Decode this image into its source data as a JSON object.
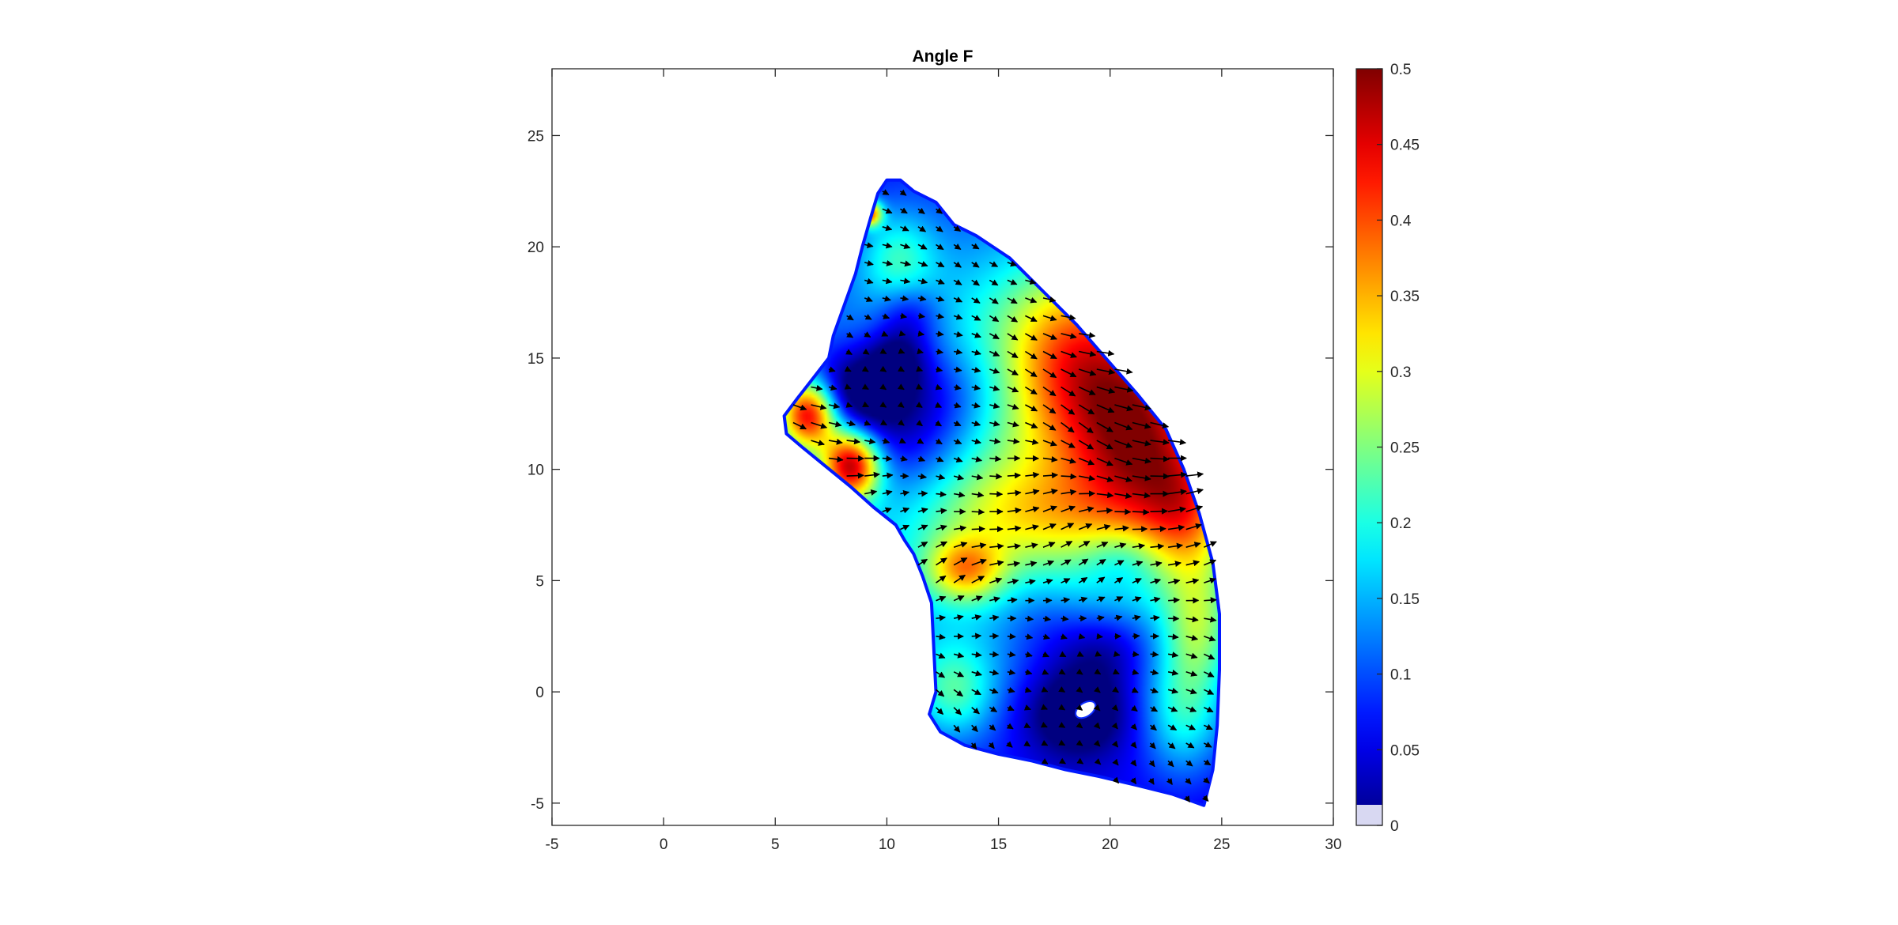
{
  "chart_data": {
    "type": "heatmap",
    "title": "Angle F",
    "xlabel": "",
    "ylabel": "",
    "xlim": [
      -5,
      30
    ],
    "ylim": [
      -6,
      28
    ],
    "x_ticks": [
      "-5",
      "0",
      "5",
      "10",
      "15",
      "20",
      "25",
      "30"
    ],
    "y_ticks": [
      "-5",
      "0",
      "5",
      "10",
      "15",
      "20",
      "25"
    ],
    "grid": false,
    "colormap": "jet",
    "colorbar": {
      "clim": [
        0,
        0.5
      ],
      "ticks": [
        "0",
        "0.05",
        "0.1",
        "0.15",
        "0.2",
        "0.25",
        "0.3",
        "0.35",
        "0.4",
        "0.45",
        "0.5"
      ]
    },
    "region_outline": [
      [
        10,
        23
      ],
      [
        10.6,
        23
      ],
      [
        11.2,
        22.5
      ],
      [
        12.2,
        22
      ],
      [
        13,
        21
      ],
      [
        14,
        20.5
      ],
      [
        15.5,
        19.5
      ],
      [
        17,
        18
      ],
      [
        18.5,
        16.5
      ],
      [
        19.8,
        15
      ],
      [
        21.2,
        13.4
      ],
      [
        22.5,
        11.8
      ],
      [
        23.3,
        10
      ],
      [
        24,
        8
      ],
      [
        24.6,
        5.8
      ],
      [
        24.9,
        3.5
      ],
      [
        24.9,
        1
      ],
      [
        24.8,
        -1.5
      ],
      [
        24.6,
        -3.5
      ],
      [
        24.2,
        -5.1
      ],
      [
        22.8,
        -4.6
      ],
      [
        21.2,
        -4.2
      ],
      [
        19.5,
        -3.8
      ],
      [
        18,
        -3.5
      ],
      [
        16.5,
        -3.1
      ],
      [
        15,
        -2.8
      ],
      [
        13.5,
        -2.4
      ],
      [
        12.4,
        -1.8
      ],
      [
        11.9,
        -1
      ],
      [
        12.2,
        0
      ],
      [
        12.1,
        2
      ],
      [
        12,
        4
      ],
      [
        11.6,
        5.2
      ],
      [
        11.2,
        6.2
      ],
      [
        10.8,
        6.8
      ],
      [
        10.4,
        7.5
      ],
      [
        9.4,
        8.3
      ],
      [
        8.4,
        9.2
      ],
      [
        7.3,
        10.1
      ],
      [
        6.2,
        11
      ],
      [
        5.5,
        11.6
      ],
      [
        5.4,
        12.4
      ],
      [
        6,
        13.2
      ],
      [
        6.7,
        14.1
      ],
      [
        7.4,
        15
      ],
      [
        7.6,
        16
      ],
      [
        8.1,
        17.4
      ],
      [
        8.6,
        18.8
      ],
      [
        8.9,
        20
      ],
      [
        9.3,
        21.4
      ],
      [
        9.6,
        22.4
      ]
    ],
    "field_blobs": [
      {
        "x": 16,
        "y": 10.5,
        "sx": 9,
        "sy": 8,
        "value": 0.2
      },
      {
        "x": 21.5,
        "y": 11,
        "sx": 2.2,
        "sy": 3.2,
        "value": 0.25
      },
      {
        "x": 18.5,
        "y": 15,
        "sx": 2.5,
        "sy": 3,
        "value": 0.22
      },
      {
        "x": 23.5,
        "y": 8,
        "sx": 1.4,
        "sy": 2,
        "value": 0.15
      },
      {
        "x": 24,
        "y": 3,
        "sx": 1.1,
        "sy": 2,
        "value": 0.14
      },
      {
        "x": 23.3,
        "y": -1,
        "sx": 1.3,
        "sy": 2,
        "value": 0.12
      },
      {
        "x": 16.5,
        "y": 8,
        "sx": 3,
        "sy": 1.6,
        "value": 0.1
      },
      {
        "x": 13.5,
        "y": 5.5,
        "sx": 1.2,
        "sy": 1,
        "value": 0.18
      },
      {
        "x": 13,
        "y": 0,
        "sx": 1.3,
        "sy": 1.5,
        "value": 0.12
      },
      {
        "x": 6.5,
        "y": 12.5,
        "sx": 0.9,
        "sy": 1.1,
        "value": 0.35
      },
      {
        "x": 8.4,
        "y": 10.2,
        "sx": 0.9,
        "sy": 1.1,
        "value": 0.35
      },
      {
        "x": 10.5,
        "y": 19.5,
        "sx": 1.2,
        "sy": 1.5,
        "value": 0.1
      },
      {
        "x": 9.2,
        "y": 21.5,
        "sx": 0.4,
        "sy": 0.4,
        "value": 0.3
      },
      {
        "x": 8.5,
        "y": 13.5,
        "sx": 1.6,
        "sy": 1.4,
        "value": -0.15
      },
      {
        "x": 10.8,
        "y": 11.5,
        "sx": 2,
        "sy": 2.2,
        "value": -0.12
      },
      {
        "x": 10.5,
        "y": 15,
        "sx": 1,
        "sy": 1,
        "value": -0.1
      },
      {
        "x": 13,
        "y": 13.5,
        "sx": 2.5,
        "sy": 1.8,
        "value": -0.08
      },
      {
        "x": 11,
        "y": 17,
        "sx": 1,
        "sy": 1,
        "value": -0.08
      },
      {
        "x": 18.5,
        "y": -0.8,
        "sx": 1.8,
        "sy": 1.6,
        "value": -0.15
      },
      {
        "x": 19.8,
        "y": 2,
        "sx": 1.5,
        "sy": 1.2,
        "value": -0.08
      },
      {
        "x": 20.5,
        "y": 6,
        "sx": 1.2,
        "sy": 1,
        "value": -0.06
      },
      {
        "x": 17,
        "y": 3,
        "sx": 1.5,
        "sy": 1.4,
        "value": -0.05
      }
    ],
    "base_value": 0.03,
    "holes": [
      {
        "x": 18.9,
        "y": -0.8,
        "rx": 0.5,
        "ry": 0.3,
        "rotation_deg": -35
      }
    ],
    "vector_field": {
      "grid_start": [
        5,
        -5.5
      ],
      "grid_step": [
        0.8,
        0.8
      ],
      "direction_by_row": [
        {
          "y": 22,
          "angle_deg": -25
        },
        {
          "y": 16,
          "angle_deg": -20
        },
        {
          "y": 12,
          "angle_deg": -25
        },
        {
          "y": 8,
          "angle_deg": 10
        },
        {
          "y": 5,
          "angle_deg": 25
        },
        {
          "y": 2,
          "angle_deg": -15
        },
        {
          "y": -1,
          "angle_deg": -35
        },
        {
          "y": -5,
          "angle_deg": -50
        }
      ],
      "length_scale": 1.6
    }
  }
}
